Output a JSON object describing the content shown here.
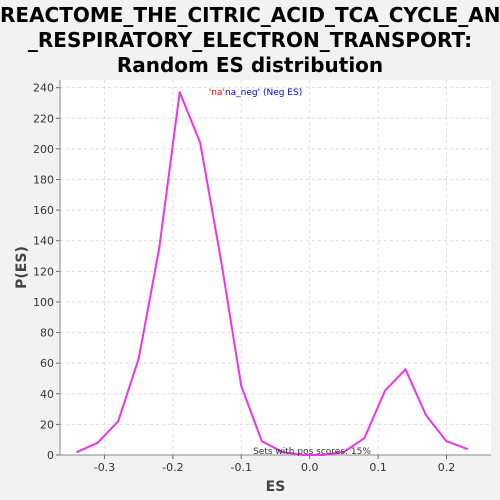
{
  "title_lines": [
    "REACTOME_THE_CITRIC_ACID_TCA_CYCLE_AND",
    "_RESPIRATORY_ELECTRON_TRANSPORT:",
    "Random ES distribution"
  ],
  "colors": {
    "background": "#f2f2f2",
    "plot_background": "#ffffff",
    "line": "#ee33ee",
    "grid": "#dddddd",
    "legend_name": "#ff0000",
    "legend_rest": "#0000ff"
  },
  "chart_data": {
    "type": "line",
    "xlabel": "ES",
    "ylabel": "P(ES)",
    "xlim": [
      -0.365,
      0.265
    ],
    "ylim": [
      0,
      245
    ],
    "xticks": [
      -0.3,
      -0.2,
      -0.1,
      0.0,
      0.1,
      0.2
    ],
    "xtick_labels": [
      "-0.3",
      "-0.2",
      "-0.1",
      "0.0",
      "0.1",
      "0.2"
    ],
    "yticks": [
      0,
      20,
      40,
      60,
      80,
      100,
      120,
      140,
      160,
      180,
      200,
      220,
      240
    ],
    "ytick_labels": [
      "0",
      "20",
      "40",
      "60",
      "80",
      "100",
      "120",
      "140",
      "160",
      "180",
      "200",
      "220",
      "240"
    ],
    "grid": true,
    "legend": {
      "position": "top-center",
      "name_part": "'na'",
      "rest_part": "na_neg' (Neg ES)"
    },
    "annotation": "Sets with pos scores: 15%",
    "series": [
      {
        "x": [
          -0.34,
          -0.31,
          -0.28,
          -0.25,
          -0.22,
          -0.19,
          -0.16,
          -0.13,
          -0.1,
          -0.07,
          -0.04,
          -0.01,
          0.02,
          0.05,
          0.08,
          0.11,
          0.14,
          0.17,
          0.2,
          0.23
        ],
        "y": [
          2,
          8,
          22,
          63,
          135,
          237,
          204,
          128,
          45,
          9,
          2,
          0,
          0,
          2,
          11,
          42,
          56,
          26,
          9,
          4
        ]
      }
    ]
  }
}
